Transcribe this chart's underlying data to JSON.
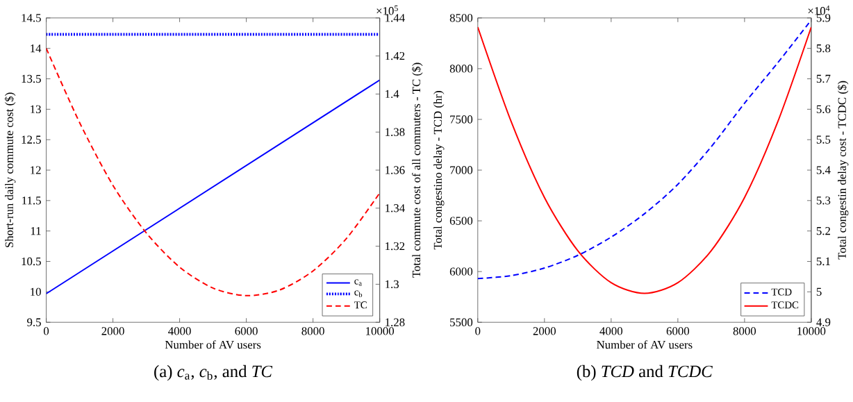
{
  "chart_data": [
    {
      "type": "line",
      "title": "(a) *c*$_{a}$, *c*$_{b}$, and *TC*",
      "xlabel": "Number of AV users",
      "ylabel": "Short-run daily commute cost ($)",
      "y2label": "Total commute cost of all commuters - TC ($)",
      "annotations": [
        "×10$^{5}$"
      ],
      "xlim": [
        0,
        10000
      ],
      "xticks": [
        0,
        2000,
        4000,
        6000,
        8000,
        10000
      ],
      "ylim": [
        9.5,
        14.5
      ],
      "yticks": [
        9.5,
        10,
        10.5,
        11,
        11.5,
        12,
        12.5,
        13,
        13.5,
        14,
        14.5
      ],
      "y2lim": [
        1.28,
        1.44
      ],
      "y2ticks": [
        1.28,
        1.3,
        1.32,
        1.34,
        1.36,
        1.38,
        1.4,
        1.42,
        1.44
      ],
      "legend": "bottom right",
      "series": [
        {
          "name": "c$_{a}$",
          "color": "#0000ff",
          "line_style": "solid",
          "axis": "y",
          "x": [
            0,
            10000
          ],
          "values": [
            9.97,
            13.48
          ]
        },
        {
          "name": "c$_{b}$",
          "color": "#0000ff",
          "line_style": "dotted",
          "axis": "y",
          "x": [
            0,
            10000
          ],
          "values": [
            14.23,
            14.23
          ]
        },
        {
          "name": "TC",
          "color": "#ff0000",
          "line_style": "dashed",
          "axis": "y2",
          "x": [
            0,
            1000,
            2000,
            3000,
            4000,
            5000,
            6000,
            7000,
            8000,
            9000,
            10000
          ],
          "values": [
            1.424,
            1.385,
            1.352,
            1.327,
            1.309,
            1.298,
            1.294,
            1.297,
            1.307,
            1.324,
            1.348
          ]
        }
      ]
    },
    {
      "type": "line",
      "title": "(b) *TCD* and *TCDC*",
      "xlabel": "Number of AV users",
      "ylabel": "Total congestino delay - TCD (hr)",
      "y2label": "Total congestin delay cost - TCDC ($)",
      "annotations": [
        "×10$^{4}$"
      ],
      "xlim": [
        0,
        10000
      ],
      "xticks": [
        0,
        2000,
        4000,
        6000,
        8000,
        10000
      ],
      "ylim": [
        5500,
        8500
      ],
      "yticks": [
        5500,
        6000,
        6500,
        7000,
        7500,
        8000,
        8500
      ],
      "y2lim": [
        4.9,
        5.9
      ],
      "y2ticks": [
        4.9,
        5,
        5.1,
        5.2,
        5.3,
        5.4,
        5.5,
        5.6,
        5.7,
        5.8,
        5.9
      ],
      "legend": "bottom right",
      "series": [
        {
          "name": "TCD",
          "color": "#0000ff",
          "line_style": "dashed",
          "axis": "y",
          "x": [
            0,
            1000,
            2000,
            3000,
            4000,
            5000,
            6000,
            7000,
            8000,
            9000,
            10000
          ],
          "values": [
            5930,
            5960,
            6035,
            6160,
            6340,
            6570,
            6860,
            7230,
            7660,
            8060,
            8480
          ]
        },
        {
          "name": "TCDC",
          "color": "#ff0000",
          "line_style": "solid",
          "axis": "y2",
          "x": [
            0,
            1000,
            2000,
            3000,
            4000,
            5000,
            6000,
            7000,
            8000,
            9000,
            10000
          ],
          "values": [
            5.87,
            5.56,
            5.31,
            5.135,
            5.03,
            4.995,
            5.03,
            5.135,
            5.31,
            5.56,
            5.87
          ]
        }
      ]
    }
  ]
}
